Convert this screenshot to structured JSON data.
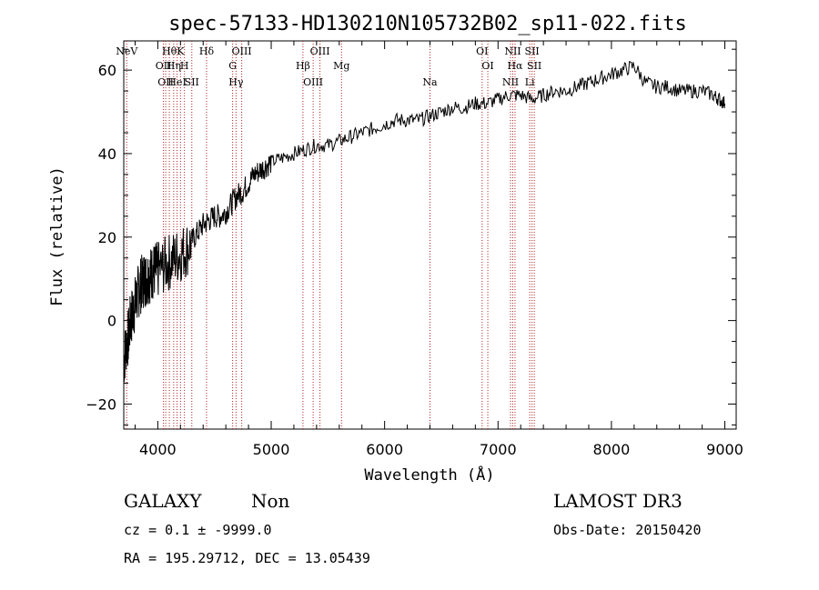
{
  "chart_data": {
    "type": "line",
    "title": "spec-57133-HD130210N105732B02_sp11-022.fits",
    "xlabel": "Wavelength (Å)",
    "ylabel": "Flux (relative)",
    "xlim": [
      3700,
      9100
    ],
    "ylim": [
      -26,
      67
    ],
    "xticks": [
      4000,
      5000,
      6000,
      7000,
      8000,
      9000
    ],
    "yticks": [
      -20,
      0,
      20,
      40,
      60
    ],
    "grid": false,
    "series": [
      {
        "x": [
          3700,
          3720,
          3740,
          3760,
          3780,
          3800,
          3820,
          3840,
          3860,
          3880,
          3900,
          3920,
          3940,
          3960,
          3980,
          4000,
          4050,
          4100,
          4150,
          4200,
          4250,
          4300,
          4350,
          4400,
          4450,
          4500,
          4550,
          4600,
          4650,
          4700,
          4750,
          4800,
          4850,
          4900,
          4950,
          5000,
          5100,
          5200,
          5300,
          5400,
          5500,
          5600,
          5700,
          5800,
          5900,
          6000,
          6100,
          6200,
          6300,
          6400,
          6500,
          6600,
          6700,
          6800,
          6900,
          7000,
          7100,
          7200,
          7300,
          7400,
          7500,
          7600,
          7700,
          7800,
          7900,
          8000,
          8100,
          8200,
          8300,
          8400,
          8500,
          8600,
          8700,
          8800,
          8900,
          8950,
          9000
        ],
        "y": [
          -10,
          -6,
          -4,
          0,
          2,
          4,
          6,
          8,
          9,
          10,
          10,
          11,
          11,
          12,
          12,
          12,
          13,
          14,
          15,
          16,
          17,
          19,
          21,
          23,
          24,
          25,
          25,
          26,
          28,
          30,
          31,
          33,
          35,
          36,
          37,
          38,
          39,
          40,
          41,
          42,
          42,
          43,
          44,
          45,
          46,
          47,
          48,
          48,
          48,
          49,
          50,
          51,
          51,
          52,
          52,
          53,
          54,
          54,
          53,
          54,
          55,
          55,
          56,
          57,
          58,
          59,
          60,
          61,
          57,
          56,
          56,
          55,
          55,
          55,
          54,
          53,
          52
        ]
      }
    ],
    "line_markers": [
      {
        "x": 3726,
        "label": "NeV"
      },
      {
        "x": 4050,
        "label": "OII"
      },
      {
        "x": 4070,
        "label": "OII"
      },
      {
        "x": 4102,
        "label": "Hθ"
      },
      {
        "x": 4140,
        "label": "Hη"
      },
      {
        "x": 4170,
        "label": "HeI"
      },
      {
        "x": 4200,
        "label": "K"
      },
      {
        "x": 4235,
        "label": "H"
      },
      {
        "x": 4300,
        "label": "SII"
      },
      {
        "x": 4430,
        "label": "Hδ"
      },
      {
        "x": 4660,
        "label": "G"
      },
      {
        "x": 4690,
        "label": "Hγ"
      },
      {
        "x": 4740,
        "label": "OIII"
      },
      {
        "x": 5280,
        "label": "Hβ"
      },
      {
        "x": 5370,
        "label": "OIII"
      },
      {
        "x": 5430,
        "label": "OIII"
      },
      {
        "x": 5620,
        "label": "Mg"
      },
      {
        "x": 6400,
        "label": "Na"
      },
      {
        "x": 6860,
        "label": "OI"
      },
      {
        "x": 6910,
        "label": "OI"
      },
      {
        "x": 7110,
        "label": "NII"
      },
      {
        "x": 7130,
        "label": "NII"
      },
      {
        "x": 7150,
        "label": "Hα"
      },
      {
        "x": 7280,
        "label": "Li"
      },
      {
        "x": 7300,
        "label": "SII"
      },
      {
        "x": 7320,
        "label": "SII"
      }
    ]
  },
  "info": {
    "object_class": "GALAXY",
    "subclass": "Non",
    "survey": "LAMOST DR3",
    "cz": "cz = 0.1 ± -9999.0",
    "obs_date": "Obs-Date: 20150420",
    "coords": "RA = 195.29712, DEC =  13.05439"
  },
  "colors": {
    "spectrum": "#000000",
    "marker_line": "#b22222"
  }
}
